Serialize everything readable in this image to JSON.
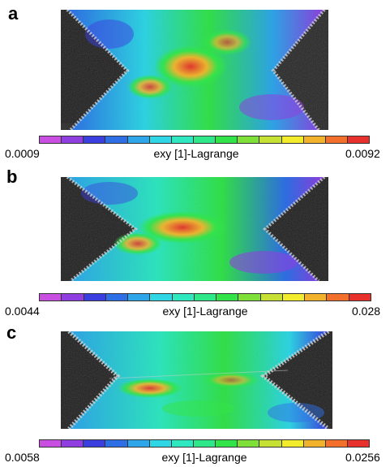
{
  "colormap": [
    "#c94fe3",
    "#8f3fe0",
    "#3b3fe0",
    "#2f6fe6",
    "#2fa6ea",
    "#2fd6e6",
    "#2fe8c0",
    "#2fe88a",
    "#33e34a",
    "#7fe03a",
    "#c6e034",
    "#f3ec2c",
    "#f3b22c",
    "#f2702c",
    "#e8302c"
  ],
  "panels": [
    {
      "letter": "a",
      "colorbar": {
        "min": "0.0009",
        "label": "exy [1]-Lagrange",
        "max": "0.0092"
      }
    },
    {
      "letter": "b",
      "colorbar": {
        "min": "0.0044",
        "label": "exy [1]-Lagrange",
        "max": "0.028"
      }
    },
    {
      "letter": "c",
      "colorbar": {
        "min": "0.0058",
        "label": "exy [1]-Lagrange",
        "max": "0.0256"
      }
    }
  ]
}
